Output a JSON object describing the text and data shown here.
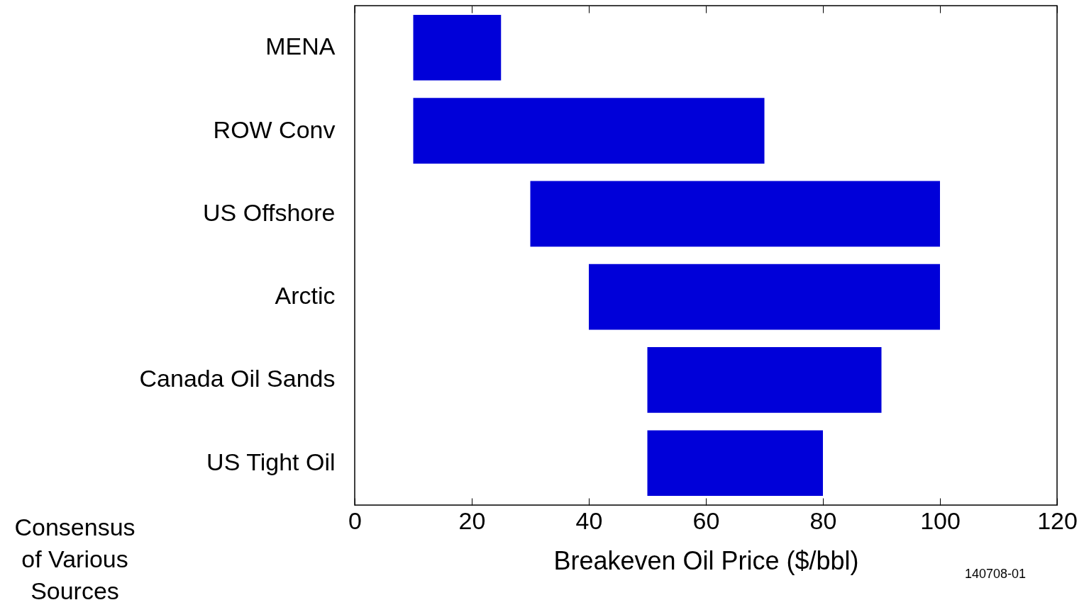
{
  "chart_data": {
    "type": "bar",
    "orientation": "horizontal",
    "xlabel": "Breakeven Oil Price ($/bbl)",
    "categories": [
      "MENA",
      "ROW Conv",
      "US Offshore",
      "Arctic",
      "Canada Oil Sands",
      "US Tight Oil"
    ],
    "base": [
      10,
      10,
      30,
      40,
      50,
      50
    ],
    "values": [
      15,
      60,
      70,
      60,
      40,
      30
    ],
    "color": "#0000d9",
    "xlim": [
      0,
      120
    ],
    "xticks": [
      0,
      20,
      40,
      60,
      80,
      100,
      120
    ],
    "grid": false,
    "annotations": [
      "Consensus of Various Sources",
      "140708-01"
    ]
  }
}
